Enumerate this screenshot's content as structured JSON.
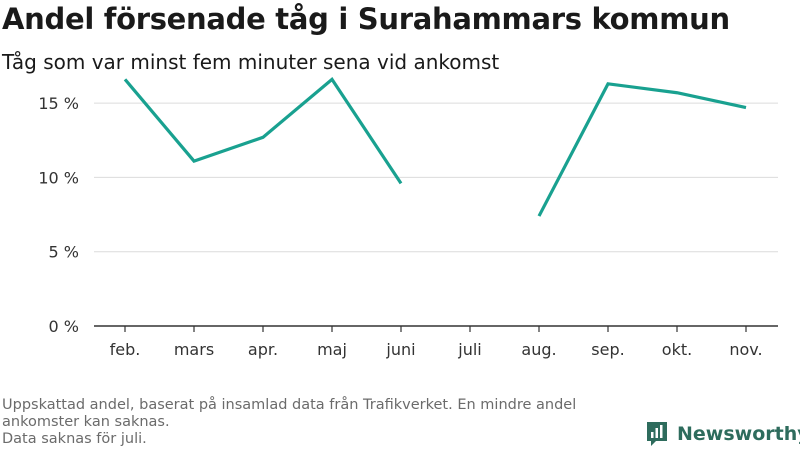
{
  "header": {
    "title": "Andel försenade tåg i Surahammars kommun",
    "subtitle": "Tåg som var minst fem minuter sena vid ankomst"
  },
  "chart_data": {
    "type": "line",
    "categories": [
      "feb.",
      "mars",
      "apr.",
      "maj",
      "juni",
      "juli",
      "aug.",
      "sep.",
      "okt.",
      "nov."
    ],
    "series": [
      {
        "values": [
          16.6,
          11.1,
          12.7,
          16.6,
          9.6,
          null,
          7.4,
          16.3,
          15.7,
          14.7
        ]
      }
    ],
    "y_ticks": [
      0,
      5,
      10,
      15
    ],
    "y_tick_labels": [
      "0 %",
      "5 %",
      "10 %",
      "15 %"
    ],
    "ylim": [
      0,
      17.5
    ],
    "grid": true,
    "line_color": "#19a190"
  },
  "footnote": {
    "lines": [
      "Uppskattad andel, baserat på insamlad data från Trafikverket. En mindre andel ankomster kan saknas.",
      "Data saknas för juli."
    ]
  },
  "brand": {
    "name": "Newsworthy",
    "color": "#2e6c5d"
  }
}
